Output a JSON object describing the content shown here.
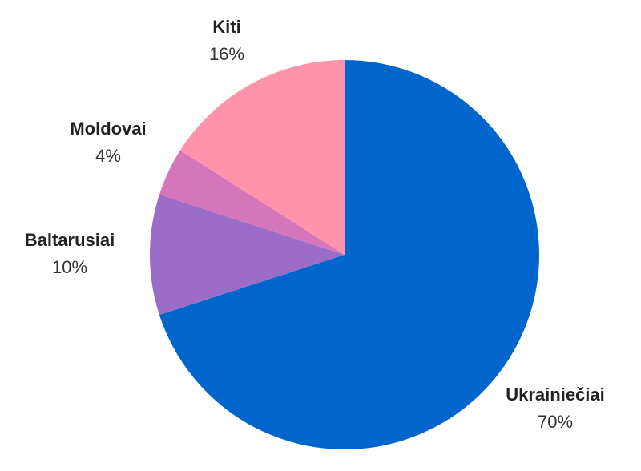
{
  "chart_data": {
    "type": "pie",
    "title": "",
    "slices": [
      {
        "label": "Ukrainiečiai",
        "value": 70,
        "value_label": "70%",
        "color": "#0066CC"
      },
      {
        "label": "Baltarusiai",
        "value": 10,
        "value_label": "10%",
        "color": "#9B6CC8"
      },
      {
        "label": "Moldovai",
        "value": 4,
        "value_label": "4%",
        "color": "#D576BB"
      },
      {
        "label": "Kiti",
        "value": 16,
        "value_label": "16%",
        "color": "#FE93AB"
      }
    ],
    "start_direction": "12 o'clock",
    "direction": "clockwise",
    "legend": "none (direct labels)"
  }
}
